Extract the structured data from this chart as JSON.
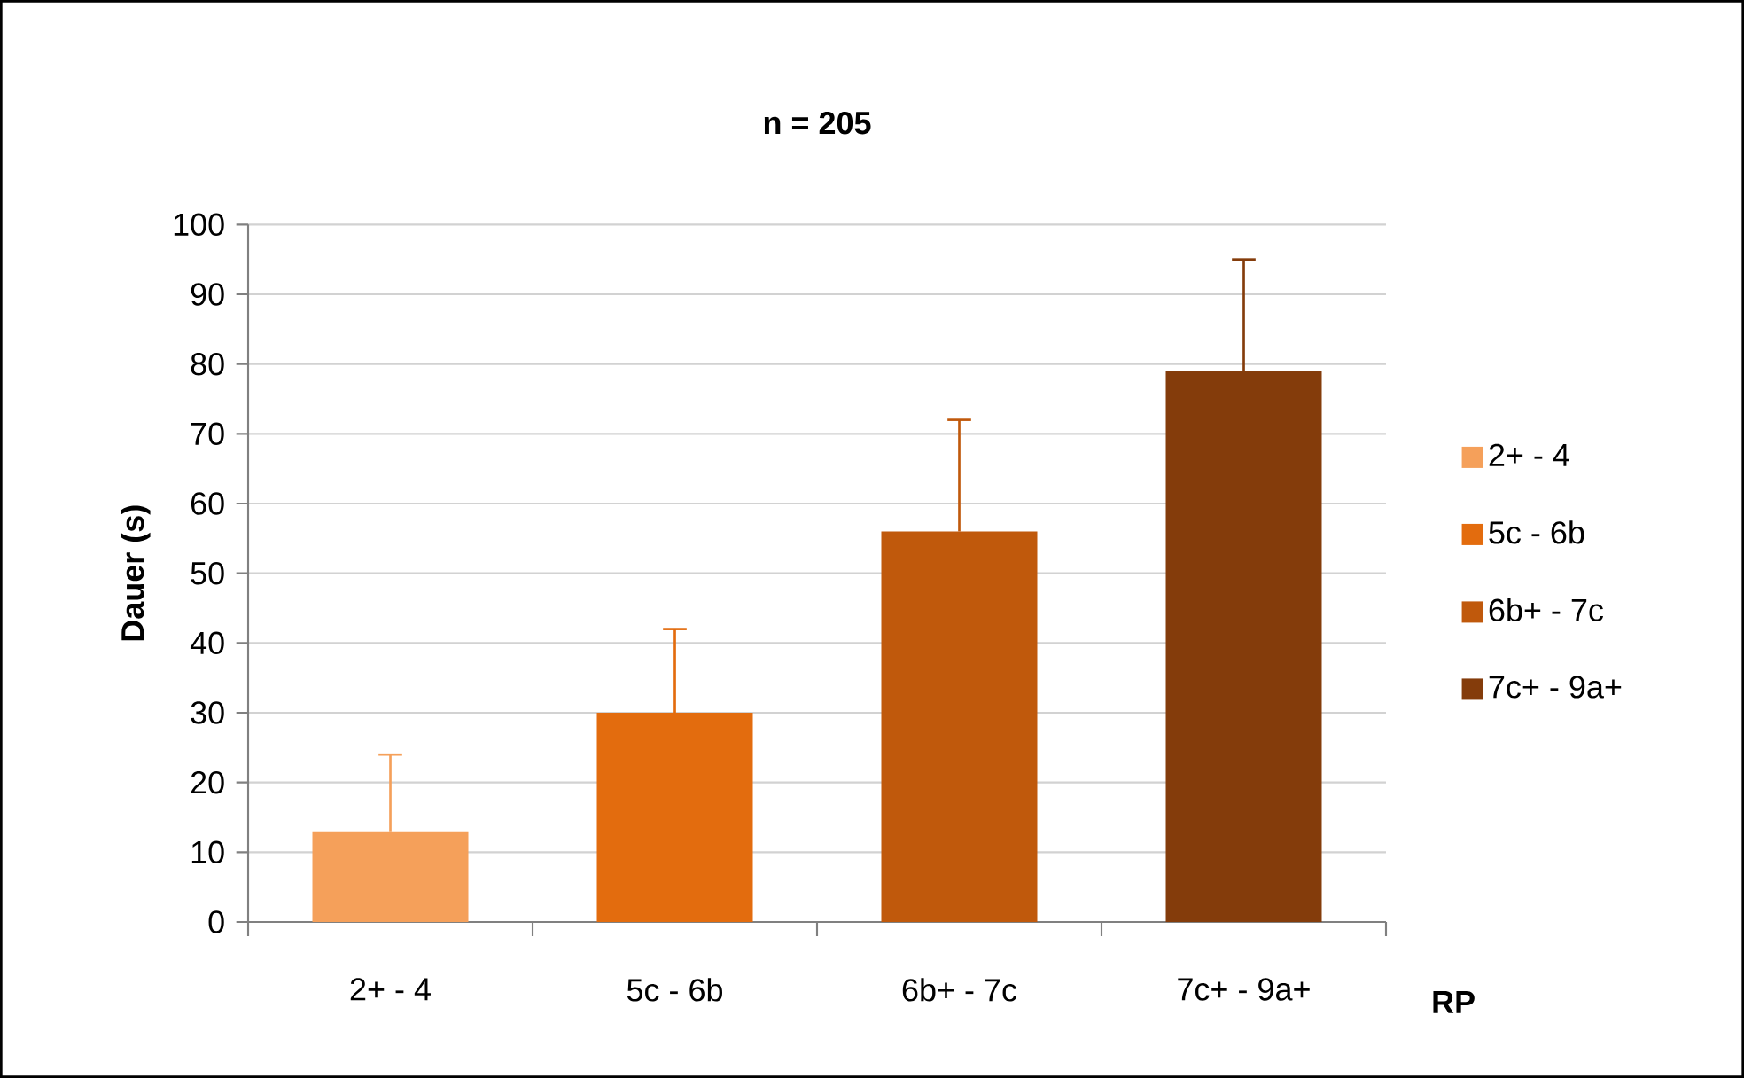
{
  "chart_data": {
    "type": "bar",
    "title": "n = 205",
    "xlabel": "RP",
    "ylabel": "Dauer (s)",
    "categories": [
      "2+ - 4",
      "5c - 6b",
      "6b+ - 7c",
      "7c+ - 9a+"
    ],
    "series": [
      {
        "name": "2+ - 4",
        "color": "#f5a05a",
        "values": [
          13,
          null,
          null,
          null
        ],
        "errors": [
          [
            13,
            24
          ],
          null,
          null,
          null
        ]
      },
      {
        "name": "5c - 6b",
        "color": "#e36c0e",
        "values": [
          null,
          30,
          null,
          null
        ],
        "errors": [
          null,
          [
            30,
            42
          ],
          null,
          null
        ]
      },
      {
        "name": "6b+ - 7c",
        "color": "#c0590c",
        "values": [
          null,
          null,
          56,
          null
        ],
        "errors": [
          null,
          null,
          [
            56,
            72
          ],
          null
        ]
      },
      {
        "name": "7c+ - 9a+",
        "color": "#843c0b",
        "values": [
          null,
          null,
          null,
          79
        ],
        "errors": [
          null,
          null,
          null,
          [
            79,
            95
          ]
        ]
      }
    ],
    "ylim": [
      0,
      100
    ],
    "yticks": [
      0,
      10,
      20,
      30,
      40,
      50,
      60,
      70,
      80,
      90,
      100
    ],
    "grid": "y",
    "legend": "right"
  }
}
